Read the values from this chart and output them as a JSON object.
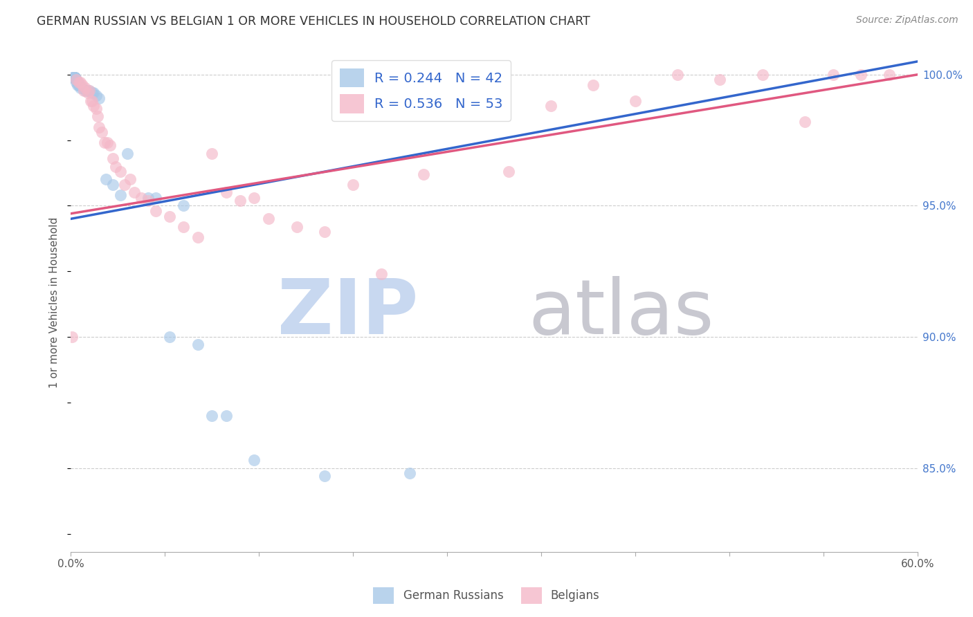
{
  "title": "GERMAN RUSSIAN VS BELGIAN 1 OR MORE VEHICLES IN HOUSEHOLD CORRELATION CHART",
  "source": "Source: ZipAtlas.com",
  "ylabel": "1 or more Vehicles in Household",
  "legend_german": "German Russians",
  "legend_belgian": "Belgians",
  "blue_color": "#a8c8e8",
  "pink_color": "#f4b8c8",
  "blue_line_color": "#3366cc",
  "pink_line_color": "#e05880",
  "legend_text_color": "#3366cc",
  "title_color": "#333333",
  "source_color": "#888888",
  "watermark_color_zip": "#c8d8f0",
  "watermark_color_atlas": "#c8c8d0",
  "grid_color": "#cccccc",
  "x_min": 0.0,
  "x_max": 0.6,
  "y_min": 0.818,
  "y_max": 1.008,
  "german_russian_x": [
    0.001,
    0.002,
    0.002,
    0.003,
    0.003,
    0.003,
    0.003,
    0.003,
    0.003,
    0.003,
    0.003,
    0.004,
    0.004,
    0.004,
    0.005,
    0.005,
    0.005,
    0.006,
    0.006,
    0.007,
    0.008,
    0.01,
    0.011,
    0.013,
    0.015,
    0.016,
    0.018,
    0.02,
    0.025,
    0.03,
    0.035,
    0.04,
    0.055,
    0.06,
    0.07,
    0.08,
    0.09,
    0.1,
    0.11,
    0.13,
    0.18,
    0.24
  ],
  "german_russian_y": [
    0.999,
    0.999,
    0.999,
    0.999,
    0.999,
    0.999,
    0.999,
    0.999,
    0.999,
    0.999,
    0.999,
    0.998,
    0.998,
    0.997,
    0.997,
    0.997,
    0.996,
    0.996,
    0.996,
    0.995,
    0.995,
    0.994,
    0.994,
    0.994,
    0.993,
    0.993,
    0.992,
    0.991,
    0.96,
    0.958,
    0.954,
    0.97,
    0.953,
    0.953,
    0.9,
    0.95,
    0.897,
    0.87,
    0.87,
    0.853,
    0.847,
    0.848
  ],
  "belgian_x": [
    0.001,
    0.004,
    0.006,
    0.007,
    0.008,
    0.009,
    0.01,
    0.012,
    0.013,
    0.014,
    0.015,
    0.016,
    0.018,
    0.019,
    0.02,
    0.022,
    0.024,
    0.026,
    0.028,
    0.03,
    0.032,
    0.035,
    0.038,
    0.042,
    0.045,
    0.05,
    0.055,
    0.06,
    0.07,
    0.08,
    0.09,
    0.1,
    0.11,
    0.12,
    0.13,
    0.14,
    0.16,
    0.18,
    0.2,
    0.22,
    0.25,
    0.28,
    0.31,
    0.34,
    0.37,
    0.4,
    0.43,
    0.46,
    0.49,
    0.52,
    0.54,
    0.56,
    0.58
  ],
  "belgian_y": [
    0.9,
    0.998,
    0.997,
    0.997,
    0.996,
    0.994,
    0.995,
    0.993,
    0.994,
    0.99,
    0.99,
    0.988,
    0.987,
    0.984,
    0.98,
    0.978,
    0.974,
    0.974,
    0.973,
    0.968,
    0.965,
    0.963,
    0.958,
    0.96,
    0.955,
    0.953,
    0.952,
    0.948,
    0.946,
    0.942,
    0.938,
    0.97,
    0.955,
    0.952,
    0.953,
    0.945,
    0.942,
    0.94,
    0.958,
    0.924,
    0.962,
    0.988,
    0.963,
    0.988,
    0.996,
    0.99,
    1.0,
    0.998,
    1.0,
    0.982,
    1.0,
    1.0,
    1.0
  ],
  "gr_trend_x0": 0.0,
  "gr_trend_x1": 0.6,
  "gr_trend_y0": 0.945,
  "gr_trend_y1": 1.005,
  "be_trend_x0": 0.0,
  "be_trend_x1": 0.6,
  "be_trend_y0": 0.947,
  "be_trend_y1": 1.0
}
